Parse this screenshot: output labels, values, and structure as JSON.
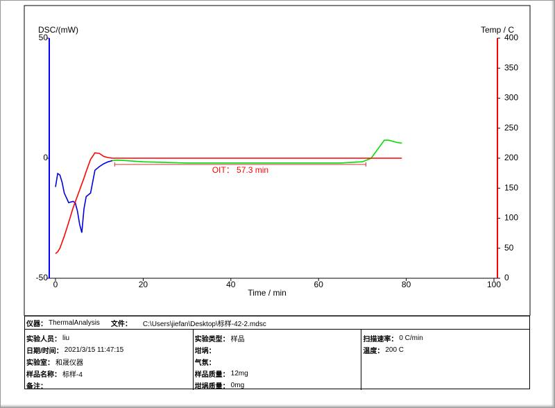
{
  "chart_data": {
    "type": "line",
    "xlabel": "Time / min",
    "ylabel": "DSC/(mW)",
    "y2label": "Temp / C",
    "xlim": [
      0,
      100
    ],
    "xticks": [
      0,
      20,
      40,
      60,
      80,
      100
    ],
    "ylim": [
      -50,
      50
    ],
    "yticks": [
      -50,
      0,
      50
    ],
    "y2lim": [
      0,
      400
    ],
    "y2ticks": [
      0,
      50,
      100,
      150,
      200,
      250,
      300,
      350,
      400
    ],
    "y_axis_color": "#0000ff",
    "y2_axis_color": "#ff0000",
    "x": [
      0,
      0.5,
      1,
      1.5,
      2,
      3,
      4,
      4.5,
      5,
      5.5,
      6,
      6.5,
      7,
      8,
      9,
      10,
      11,
      12,
      13,
      14,
      16,
      20,
      30,
      40,
      50,
      60,
      65,
      70,
      72,
      74,
      75,
      76,
      78,
      79
    ],
    "series": [
      {
        "color": "#0000dd",
        "values": [
          -12,
          -6.4,
          -7,
          -10,
          -14.5,
          -18.5,
          -18,
          -18.5,
          -22,
          -27.5,
          -31,
          -21,
          -16,
          -14.5,
          -5,
          -3.5,
          -2.3,
          -1.5,
          -1,
          null,
          null,
          null,
          null,
          null,
          null,
          null,
          null,
          null,
          null,
          null,
          null,
          null,
          null,
          null
        ]
      },
      {
        "color": "#00dd00",
        "values": [
          null,
          null,
          null,
          null,
          null,
          null,
          null,
          null,
          null,
          null,
          null,
          null,
          null,
          null,
          null,
          null,
          null,
          null,
          -1,
          -0.8,
          -1,
          -1.5,
          -2,
          -2,
          -2,
          -2,
          -2,
          -1.5,
          0,
          5,
          7.5,
          7.5,
          6.5,
          6.3
        ]
      },
      {
        "color": "#ff0000",
        "axis": "y2",
        "values": [
          41,
          44,
          50,
          60,
          70,
          93,
          117,
          127,
          137,
          147,
          157,
          167,
          178,
          198,
          209,
          208,
          203,
          201,
          200,
          200,
          200,
          200,
          200,
          200,
          200,
          200,
          200,
          200,
          200,
          200,
          200,
          200,
          200,
          200
        ]
      }
    ],
    "annotation": "OIT：  57.3 min",
    "oit_range": [
      13.5,
      70.8
    ]
  },
  "info": {
    "instrument": {
      "label": "仪器：",
      "value": "ThermalAnalysis"
    },
    "file": {
      "label": "文件：",
      "value": "C:\\Users\\jiefan\\Desktop\\标样-42-2.mdsc"
    },
    "columns": [
      [
        {
          "label": "实验人员：",
          "value": "liu"
        },
        {
          "label": "日期/时间：",
          "value": "2021/3/15 11:47:15"
        },
        {
          "label": "实验室：",
          "value": "和晟仪器"
        },
        {
          "label": "样品名称：",
          "value": "标样-4"
        },
        {
          "label": "备注："
        }
      ],
      [
        {
          "label": "实验类型：",
          "value": "样品"
        },
        {
          "label": "坩埚："
        },
        {
          "label": "气氛："
        },
        {
          "label": "样品质量：",
          "value": "12mg"
        },
        {
          "label": "坩埚质量：",
          "value": "0mg"
        }
      ],
      [
        {
          "label": "扫描速率：",
          "value": "0 C/min"
        },
        {
          "label": "温度：",
          "value": "200 C"
        }
      ]
    ]
  }
}
